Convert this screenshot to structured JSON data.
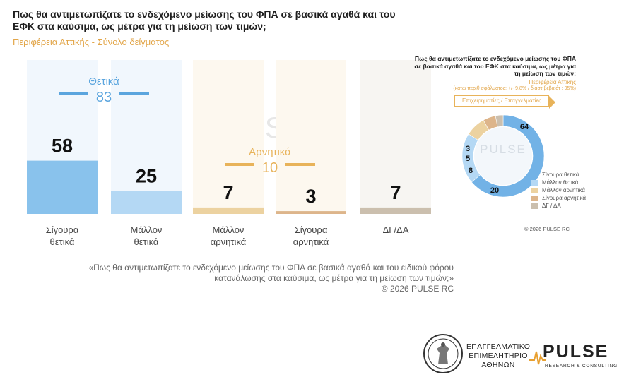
{
  "header": {
    "title": "Πως θα αντιμετωπίζατε το ενδεχόμενο μείωσης του ΦΠΑ σε βασικά αγαθά και του ΕΦΚ στα καύσιμα, ως μέτρα για τη μείωση των τιμών;",
    "subtitle": "Περιφέρεια Αττικής - Σύνολο δείγματος"
  },
  "chart_data": [
    {
      "type": "bar",
      "categories": [
        "Σίγουρα θετικά",
        "Μάλλον θετικά",
        "Μάλλον αρνητικά",
        "Σίγουρα αρνητικά",
        "ΔΓ/ΔΑ"
      ],
      "values": [
        58,
        25,
        7,
        3,
        7
      ],
      "colors": [
        "#89c2ec",
        "#b4d8f4",
        "#ecd2a0",
        "#ddb58b",
        "#cbbfae"
      ],
      "ylim": [
        0,
        100
      ],
      "groups": [
        {
          "label": "Θετικά",
          "value": 83,
          "color": "#5ba5de"
        },
        {
          "label": "Αρνητικά",
          "value": 10,
          "color": "#e8b35a"
        }
      ]
    },
    {
      "type": "pie",
      "title": "Πως θα αντιμετωπίζατε το ενδεχόμενο μείωσης του ΦΠΑ σε βασικά αγαθά και του ΕΦΚ στα καύσιμα, ως μέτρα για τη μείωση των τιμών;",
      "subtitle": "Περιφέρεια Αττικής",
      "note": "(κατω περιθ σφάλματος: +/- 9,8% / διαστ βεβαιότ : 95%)",
      "group": "Επιχειρηματίες / Επαγγελματίες",
      "labels": [
        "Σίγουρα θετικά",
        "Μάλλον θετικά",
        "Μάλλον αρνητικά",
        "Σίγουρα αρνητικά",
        "ΔΓ / ΔΑ"
      ],
      "values": [
        64,
        20,
        8,
        5,
        3
      ],
      "colors": [
        "#72b2e6",
        "#b4d8f4",
        "#ecd2a0",
        "#ddb58b",
        "#cbbfae"
      ]
    }
  ],
  "footnote": {
    "line1": "«Πως θα αντιμετωπίζατε το ενδεχόμενο μείωσης του ΦΠΑ σε βασικά αγαθά και του ειδικού φόρου",
    "line2": "κατανάλωσης στα καύσιμα, ως μέτρα για τη μείωση των τιμών;»",
    "copyright": "©  2026  PULSE RC"
  },
  "donut_copyright": "©  2026  PULSE RC",
  "watermark": "PULSE",
  "logos": {
    "chamber_line1": "ΕΠΑΓΓΕΛΜΑΤΙΚΟ",
    "chamber_line2": "ΕΠΙΜΕΛΗΤΗΡΙΟ",
    "chamber_line3": "ΑΘΗΝΩΝ",
    "pulse_name": "PULSE",
    "pulse_tagline": "RESEARCH & CONSULTING"
  }
}
